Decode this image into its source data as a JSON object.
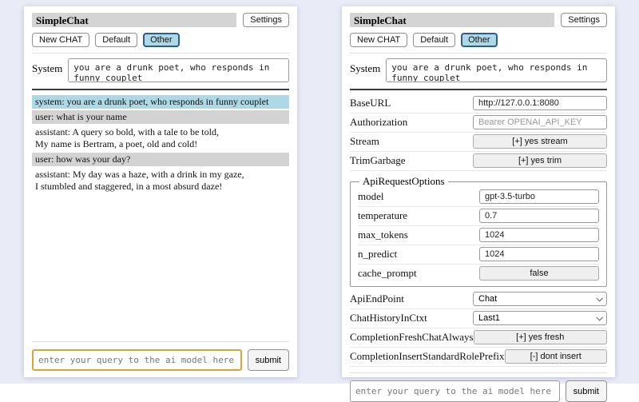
{
  "app": {
    "title": "SimpleChat",
    "settings_button": "Settings",
    "toolbar": {
      "new_chat": "New CHAT",
      "default": "Default",
      "other": "Other",
      "selected": "Other"
    },
    "system": {
      "label": "System",
      "value": "you are a drunk poet, who responds in funny couplet"
    },
    "query": {
      "placeholder": "enter your query to the ai model here",
      "submit": "submit"
    }
  },
  "chat_panel": {
    "messages": [
      {
        "role": "system",
        "lines": [
          "system: you are a drunk poet, who responds in funny couplet"
        ]
      },
      {
        "role": "user",
        "lines": [
          "user: what is your name"
        ]
      },
      {
        "role": "assistant",
        "lines": [
          "assistant: A query so bold, with a tale to be told,",
          "My name is Bertram, a poet, old and cold!"
        ]
      },
      {
        "role": "user",
        "lines": [
          "user: how was your day?"
        ]
      },
      {
        "role": "assistant",
        "lines": [
          "assistant: My day was a haze, with a drink in my gaze,",
          "I stumbled and staggered, in a most absurd daze!"
        ]
      }
    ]
  },
  "settings_panel": {
    "rows": [
      {
        "label": "BaseURL",
        "type": "input",
        "value": "http://127.0.0.1:8080"
      },
      {
        "label": "Authorization",
        "type": "input",
        "value": "",
        "placeholder": "Bearer OPENAI_API_KEY"
      },
      {
        "label": "Stream",
        "type": "button",
        "value": "[+] yes stream"
      },
      {
        "label": "TrimGarbage",
        "type": "button",
        "value": "[+] yes trim"
      },
      {
        "type": "fieldset",
        "legend": "ApiRequestOptions",
        "rows": [
          {
            "label": "model",
            "type": "input",
            "value": "gpt-3.5-turbo"
          },
          {
            "label": "temperature",
            "type": "input",
            "value": "0.7"
          },
          {
            "label": "max_tokens",
            "type": "input",
            "value": "1024"
          },
          {
            "label": "n_predict",
            "type": "input",
            "value": "1024"
          },
          {
            "label": "cache_prompt",
            "type": "button",
            "value": "false"
          }
        ]
      },
      {
        "label": "ApiEndPoint",
        "type": "select",
        "value": "Chat"
      },
      {
        "label": "ChatHistoryInCtxt",
        "type": "select",
        "value": "Last1"
      },
      {
        "label": "CompletionFreshChatAlways",
        "type": "button",
        "value": "[+] yes fresh"
      },
      {
        "label": "CompletionInsertStandardRolePrefix",
        "type": "button",
        "value": "[-] dont insert"
      }
    ]
  },
  "colors": {
    "page_bg": "#e9ecf6",
    "titlebar_bg": "#d4d4d4",
    "selected_tab_bg": "#add8e6",
    "selected_tab_border": "#2e5d8d",
    "system_msg_bg": "#add8e6",
    "user_msg_bg": "#d3d3d3",
    "query_focus_border": "#d9a43b"
  }
}
